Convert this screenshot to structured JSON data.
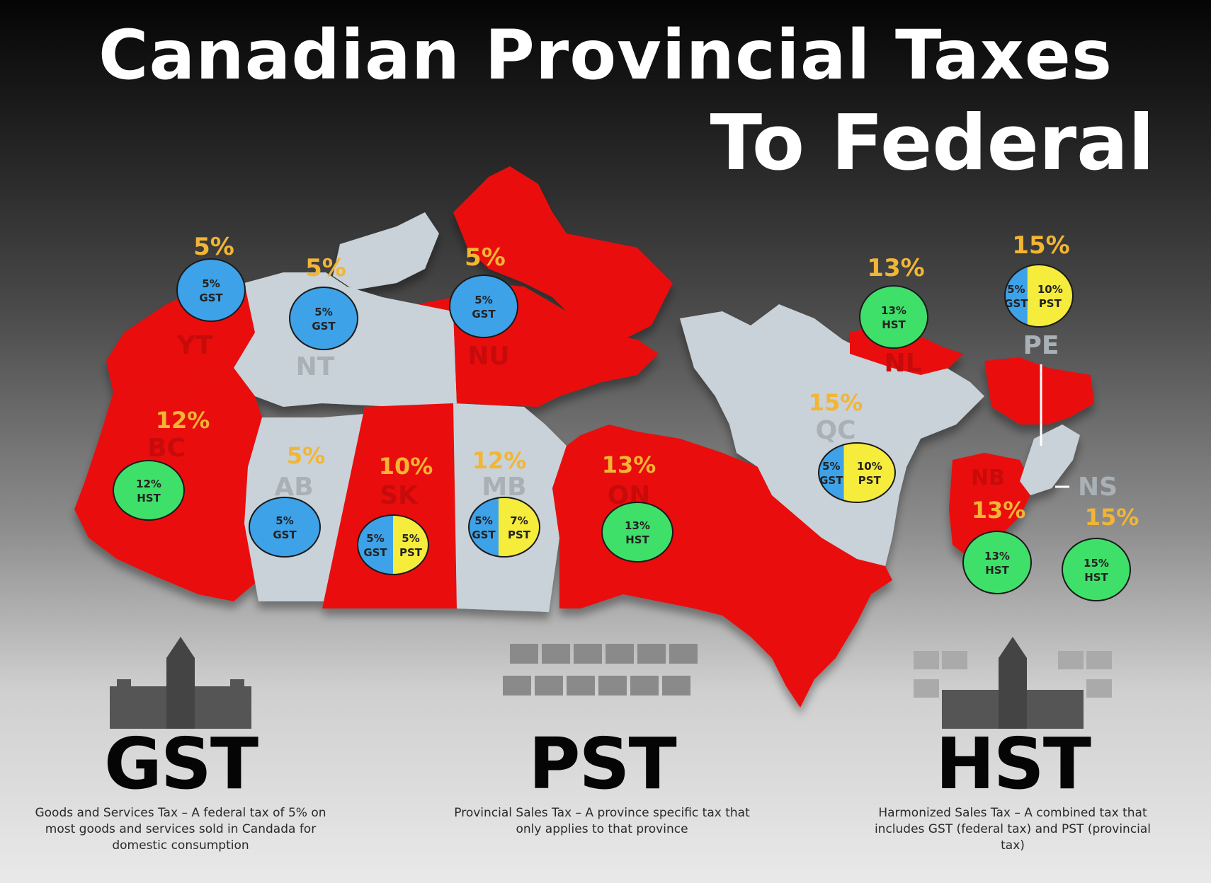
{
  "title": "Canadian Provincial Taxes",
  "subtitle": "To Federal",
  "regions": [
    {
      "code": "YT",
      "total": "5%",
      "taxes": [
        {
          "rate": "5%",
          "type": "GST",
          "color": "#3ea2e8",
          "share": 1.0
        }
      ]
    },
    {
      "code": "NT",
      "total": "5%",
      "taxes": [
        {
          "rate": "5%",
          "type": "GST",
          "color": "#3ea2e8",
          "share": 1.0
        }
      ]
    },
    {
      "code": "NU",
      "total": "5%",
      "taxes": [
        {
          "rate": "5%",
          "type": "GST",
          "color": "#3ea2e8",
          "share": 1.0
        }
      ]
    },
    {
      "code": "BC",
      "total": "12%",
      "taxes": [
        {
          "rate": "12%",
          "type": "HST",
          "color": "#3fe06a",
          "share": 1.0
        }
      ]
    },
    {
      "code": "AB",
      "total": "5%",
      "taxes": [
        {
          "rate": "5%",
          "type": "GST",
          "color": "#3ea2e8",
          "share": 1.0
        }
      ]
    },
    {
      "code": "SK",
      "total": "10%",
      "taxes": [
        {
          "rate": "5%",
          "type": "GST",
          "color": "#3ea2e8",
          "share": 0.5
        },
        {
          "rate": "5%",
          "type": "PST",
          "color": "#f6ec3c",
          "share": 0.5
        }
      ]
    },
    {
      "code": "MB",
      "total": "12%",
      "taxes": [
        {
          "rate": "5%",
          "type": "GST",
          "color": "#3ea2e8",
          "share": 0.42
        },
        {
          "rate": "7%",
          "type": "PST",
          "color": "#f6ec3c",
          "share": 0.58
        }
      ]
    },
    {
      "code": "ON",
      "total": "13%",
      "taxes": [
        {
          "rate": "13%",
          "type": "HST",
          "color": "#3fe06a",
          "share": 1.0
        }
      ]
    },
    {
      "code": "QC",
      "total": "15%",
      "taxes": [
        {
          "rate": "5%",
          "type": "GST",
          "color": "#3ea2e8",
          "share": 0.33
        },
        {
          "rate": "10%",
          "type": "PST",
          "color": "#f6ec3c",
          "share": 0.67
        }
      ]
    },
    {
      "code": "NL",
      "total": "13%",
      "taxes": [
        {
          "rate": "13%",
          "type": "HST",
          "color": "#3fe06a",
          "share": 1.0
        }
      ]
    },
    {
      "code": "PE",
      "total": "15%",
      "taxes": [
        {
          "rate": "5%",
          "type": "GST",
          "color": "#3ea2e8",
          "share": 0.33
        },
        {
          "rate": "10%",
          "type": "PST",
          "color": "#f6ec3c",
          "share": 0.67
        }
      ]
    },
    {
      "code": "NB",
      "total": "13%",
      "taxes": [
        {
          "rate": "13%",
          "type": "HST",
          "color": "#3fe06a",
          "share": 1.0
        }
      ]
    },
    {
      "code": "NS",
      "total": "15%",
      "taxes": [
        {
          "rate": "15%",
          "type": "HST",
          "color": "#3fe06a",
          "share": 1.0
        }
      ]
    }
  ],
  "legend": [
    {
      "name": "GST",
      "description": "Goods and Services Tax – A federal tax of 5% on most goods and services sold in Candada for domestic consumption"
    },
    {
      "name": "PST",
      "description": "Provincial Sales Tax – A province specific tax that only applies to that province"
    },
    {
      "name": "HST",
      "description": "Harmonized Sales Tax – A combined tax that includes GST (federal tax) and PST (provincial tax)"
    }
  ],
  "colors": {
    "hst_region": "#ea0d0d",
    "non_hst_region": "#c9d2d8",
    "gst": "#3ea2e8",
    "pst": "#f6ec3c",
    "hst": "#3fe06a",
    "rate_label": "#f2b534"
  }
}
